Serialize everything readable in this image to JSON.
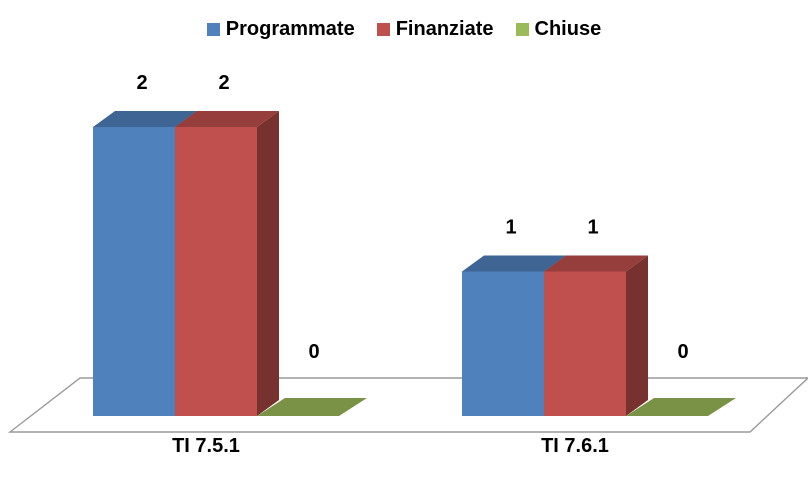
{
  "chart_data": {
    "type": "bar",
    "categories": [
      "TI 7.5.1",
      "TI 7.6.1"
    ],
    "series": [
      {
        "name": "Programmate",
        "values": [
          2,
          1
        ],
        "color": "#4F81BD"
      },
      {
        "name": "Finanziate",
        "values": [
          2,
          1
        ],
        "color": "#C0504D"
      },
      {
        "name": "Chiuse",
        "values": [
          0,
          0
        ],
        "color": "#9BBB59"
      }
    ],
    "ylim": [
      0,
      2
    ],
    "grid": false,
    "legend_position": "top",
    "three_d": true
  }
}
